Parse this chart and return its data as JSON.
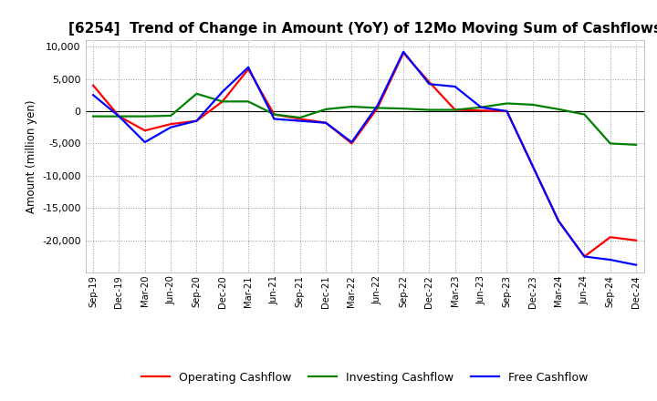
{
  "title": "[6254]  Trend of Change in Amount (YoY) of 12Mo Moving Sum of Cashflows",
  "ylabel": "Amount (million yen)",
  "x_labels": [
    "Sep-19",
    "Dec-19",
    "Mar-20",
    "Jun-20",
    "Sep-20",
    "Dec-20",
    "Mar-21",
    "Jun-21",
    "Sep-21",
    "Dec-21",
    "Mar-22",
    "Jun-22",
    "Sep-22",
    "Dec-22",
    "Mar-23",
    "Jun-23",
    "Sep-23",
    "Dec-23",
    "Mar-24",
    "Jun-24",
    "Sep-24",
    "Dec-24"
  ],
  "operating": [
    4000,
    -800,
    -3000,
    -2000,
    -1500,
    1500,
    6500,
    -500,
    -1200,
    -1800,
    -5000,
    500,
    9000,
    4500,
    200,
    100,
    0,
    -8500,
    -17000,
    -22500,
    -19500,
    -20000
  ],
  "investing": [
    -800,
    -800,
    -800,
    -700,
    2700,
    1500,
    1500,
    -500,
    -1000,
    300,
    700,
    500,
    400,
    200,
    200,
    600,
    1200,
    1000,
    300,
    -500,
    -5000,
    -5200
  ],
  "free": [
    2500,
    -800,
    -4800,
    -2500,
    -1500,
    3000,
    6800,
    -1200,
    -1500,
    -1800,
    -4800,
    900,
    9200,
    4200,
    3800,
    600,
    0,
    -8500,
    -17000,
    -22500,
    -23000,
    -23800
  ],
  "operating_color": "#FF0000",
  "investing_color": "#008000",
  "free_color": "#0000FF",
  "ylim": [
    -25000,
    11000
  ],
  "yticks": [
    -20000,
    -15000,
    -10000,
    -5000,
    0,
    5000,
    10000
  ],
  "background_color": "#FFFFFF",
  "grid_color": "#999999",
  "title_fontsize": 11,
  "legend_labels": [
    "Operating Cashflow",
    "Investing Cashflow",
    "Free Cashflow"
  ]
}
